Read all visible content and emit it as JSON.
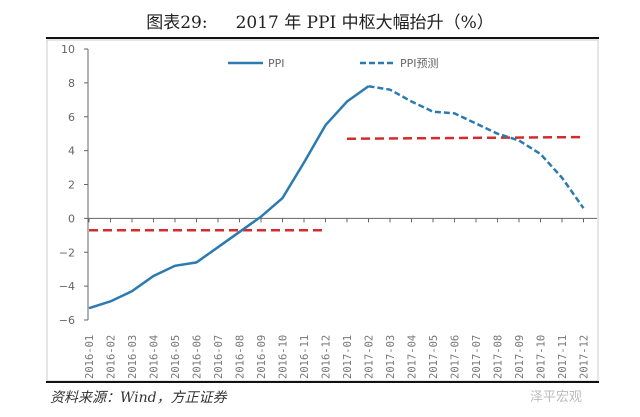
{
  "title": {
    "label": "图表29:",
    "text": "2017 年 PPI 中枢大幅抬升（%）"
  },
  "source": "资料来源：Wind，方正证券",
  "watermark": "泽平宏观",
  "chart_data": {
    "type": "line",
    "categories": [
      "2016-01",
      "2016-02",
      "2016-03",
      "2016-04",
      "2016-05",
      "2016-06",
      "2016-07",
      "2016-08",
      "2016-09",
      "2016-10",
      "2016-11",
      "2016-12",
      "2017-01",
      "2017-02",
      "2017-03",
      "2017-04",
      "2017-05",
      "2017-06",
      "2017-07",
      "2017-08",
      "2017-09",
      "2017-10",
      "2017-11",
      "2017-12"
    ],
    "ylim": [
      -6,
      10
    ],
    "yticks": [
      -6,
      -4,
      -2,
      0,
      2,
      4,
      6,
      8,
      10
    ],
    "grid": false,
    "legend": "top",
    "series": [
      {
        "name": "PPI",
        "color": "#2b7bb0",
        "style": "solid",
        "values": [
          -5.3,
          -4.9,
          -4.3,
          -3.4,
          -2.8,
          -2.6,
          -1.7,
          -0.8,
          0.1,
          1.2,
          3.3,
          5.5,
          6.9,
          7.8,
          null,
          null,
          null,
          null,
          null,
          null,
          null,
          null,
          null,
          null
        ]
      },
      {
        "name": "PPI预测",
        "color": "#2b7bb0",
        "style": "dashed",
        "values": [
          null,
          null,
          null,
          null,
          null,
          null,
          null,
          null,
          null,
          null,
          null,
          null,
          null,
          7.8,
          7.6,
          6.9,
          6.3,
          6.2,
          5.6,
          5.0,
          4.6,
          3.8,
          2.4,
          0.6
        ]
      }
    ],
    "reference_lines": [
      {
        "color": "#d62b2b",
        "style": "dashed",
        "from": "2016-01",
        "to": "2016-12",
        "values": [
          -0.7,
          -0.7
        ]
      },
      {
        "color": "#d62b2b",
        "style": "dashed",
        "from": "2017-01",
        "to": "2017-12",
        "values": [
          4.7,
          4.8
        ]
      }
    ]
  }
}
